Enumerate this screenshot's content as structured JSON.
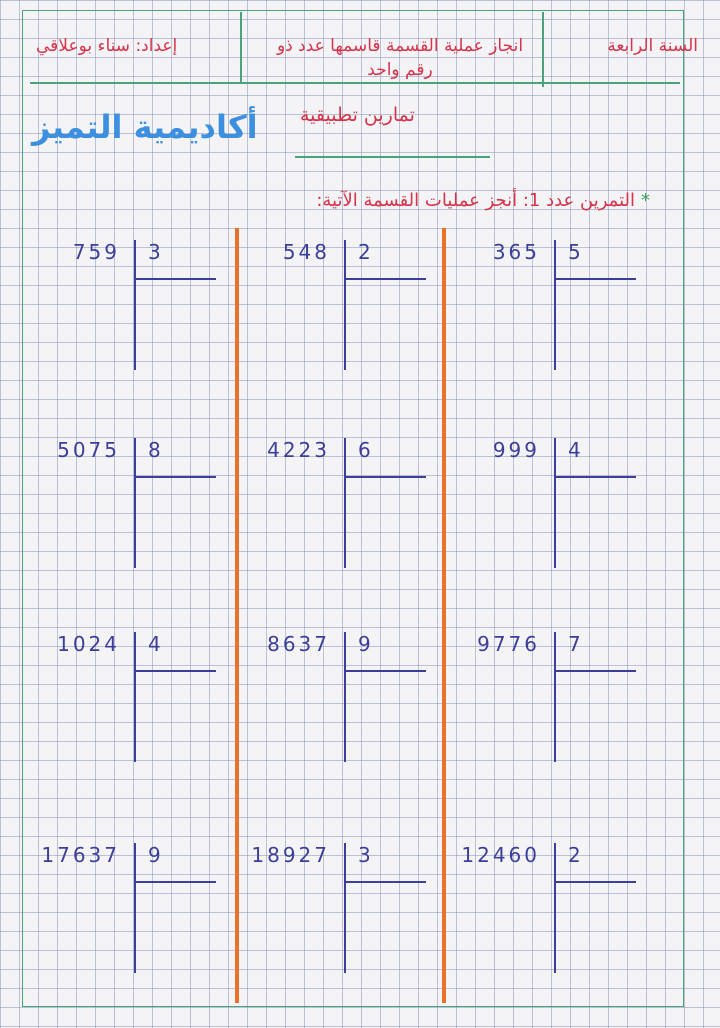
{
  "header": {
    "grade": "السنة الرابعة",
    "topic": "انجاز عملية القسمة قاسمها عدد ذو رقم واحد",
    "author": "إعداد: سناء بوعلاقي",
    "subtitle": "تمارين تطبيقية",
    "brand": "أكاديمية التميز"
  },
  "exercise": {
    "star": "*",
    "title": "التمرين عدد 1: أنجز عمليات القسمة الآتية:"
  },
  "divisions": [
    {
      "dividend": "759",
      "divisor": "3"
    },
    {
      "dividend": "548",
      "divisor": "2"
    },
    {
      "dividend": "365",
      "divisor": "5"
    },
    {
      "dividend": "5075",
      "divisor": "8"
    },
    {
      "dividend": "4223",
      "divisor": "6"
    },
    {
      "dividend": "999",
      "divisor": "4"
    },
    {
      "dividend": "1024",
      "divisor": "4"
    },
    {
      "dividend": "8637",
      "divisor": "9"
    },
    {
      "dividend": "9776",
      "divisor": "7"
    },
    {
      "dividend": "17637",
      "divisor": "9"
    },
    {
      "dividend": "18927",
      "divisor": "3"
    },
    {
      "dividend": "12460",
      "divisor": "2"
    }
  ],
  "colors": {
    "header_text": "#d8334a",
    "brand": "#3d8fe0",
    "ink": "#3c3f9a",
    "separator": "#e8722c",
    "frame": "#4aa37a"
  }
}
